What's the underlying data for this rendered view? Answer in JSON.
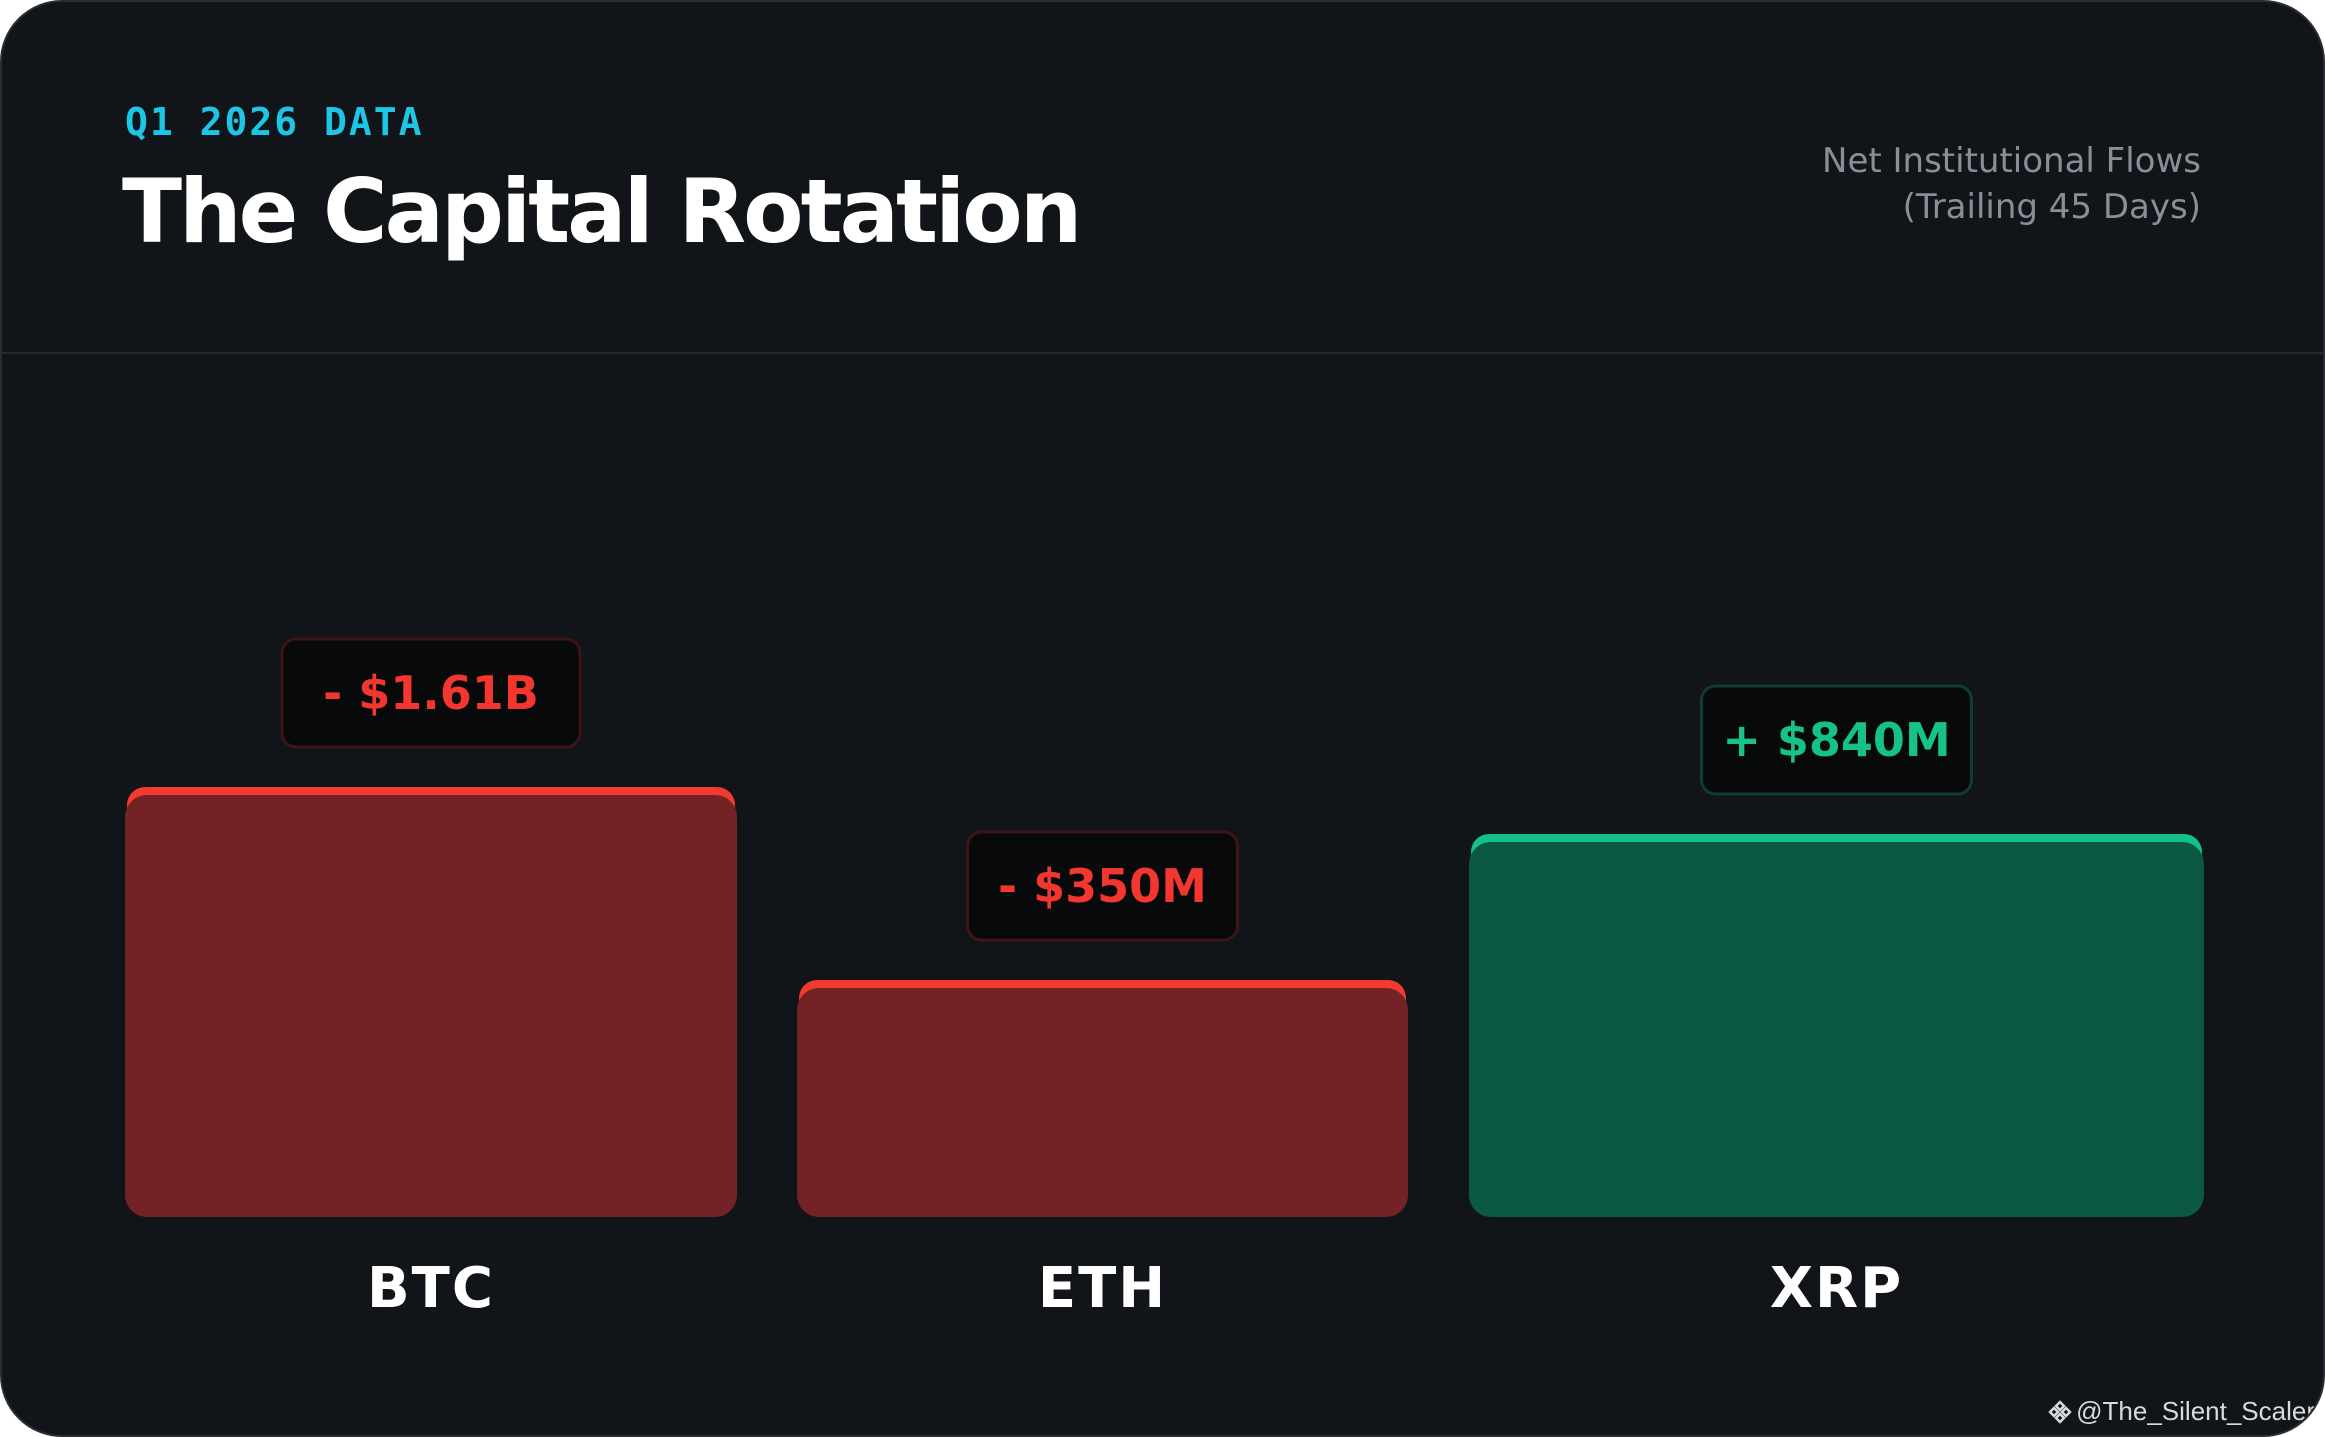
{
  "header": {
    "eyebrow": "Q1 2026 DATA",
    "title": "The Capital Rotation",
    "subtitle_line1": "Net Institutional Flows",
    "subtitle_line2": "(Trailing 45 Days)"
  },
  "chart_data": {
    "type": "bar",
    "categories": [
      "BTC",
      "ETH",
      "XRP"
    ],
    "values": [
      -1610,
      -350,
      840
    ],
    "value_unit": "USD millions",
    "data_labels": [
      "- $1.61B",
      "- $350M",
      "+ $840M"
    ],
    "bar_colors": [
      "#732326",
      "#732326",
      "#0b5843"
    ],
    "accent_colors": [
      "#f23a2f",
      "#f23a2f",
      "#13c08a"
    ],
    "label_colors": [
      "#f3362e",
      "#f3362e",
      "#16c28a"
    ],
    "grid": false,
    "legend": "none"
  },
  "watermark": {
    "text": "@The_Silent_Scaler"
  },
  "colors": {
    "background": "#111418",
    "accent_cyan": "#1cc6e4",
    "negative": "#f23a2f",
    "positive": "#13c08a"
  }
}
